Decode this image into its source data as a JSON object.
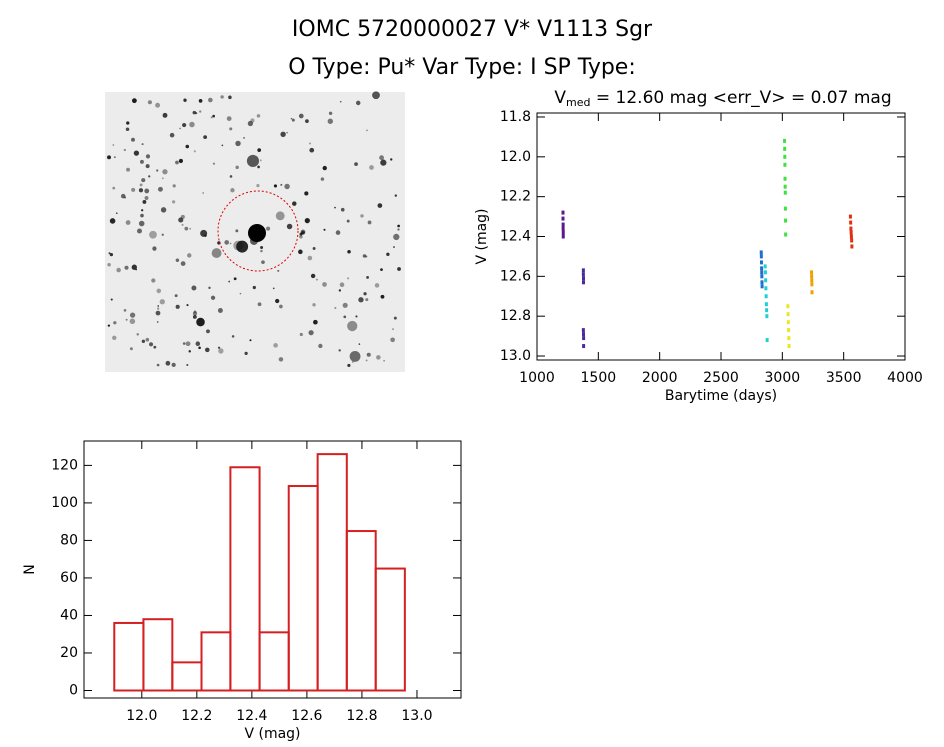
{
  "header": {
    "title": "IOMC 5720000027    V* V1113 Sgr",
    "subtitle": "O Type: Pu*   Var Type: I   SP Type:"
  },
  "chart_data": [
    {
      "type": "scatter",
      "title": {
        "symbol": "V",
        "subscript": "med",
        "text": " = 12.60 mag <err_V> = 0.07 mag"
      },
      "x_label": "Barytime (days)",
      "y_label": "V (mag)",
      "xlim": [
        1000,
        4000
      ],
      "xticks": [
        1000,
        1500,
        2000,
        2500,
        3000,
        3500,
        4000
      ],
      "ylim": [
        13.02,
        11.78
      ],
      "y_reversed": true,
      "yticks": [
        11.8,
        {
          "value": 12.0,
          "label": "12.0"
        },
        12.2,
        12.4,
        12.6,
        12.8,
        {
          "value": 13.0,
          "label": "13.0"
        }
      ],
      "series": [
        {
          "color": "#5a1a8c",
          "x": [
            1212,
            1212,
            1213,
            1213,
            1214,
            1214
          ],
          "y": [
            12.28,
            12.31,
            12.34,
            12.36,
            12.38,
            12.4
          ]
        },
        {
          "color": "#4b2a9c",
          "x": [
            1378,
            1378,
            1379,
            1379,
            1378,
            1379,
            1380,
            1380
          ],
          "y": [
            12.57,
            12.59,
            12.61,
            12.63,
            12.87,
            12.89,
            12.91,
            12.95
          ]
        },
        {
          "color": "#1f6fd0",
          "x": [
            2828,
            2829,
            2830,
            2831,
            2832,
            2833,
            2834,
            2835
          ],
          "y": [
            12.48,
            12.5,
            12.53,
            12.56,
            12.58,
            12.6,
            12.63,
            12.65
          ]
        },
        {
          "color": "#20d0d0",
          "x": [
            2860,
            2862,
            2864,
            2866,
            2868,
            2870,
            2872,
            2874,
            2876
          ],
          "y": [
            12.55,
            12.58,
            12.62,
            12.66,
            12.7,
            12.74,
            12.77,
            12.8,
            12.92
          ]
        },
        {
          "color": "#40e040",
          "x": [
            3018,
            3019,
            3020,
            3021,
            3022,
            3023,
            3024,
            3025,
            3026,
            3027
          ],
          "y": [
            11.92,
            11.96,
            12.0,
            12.04,
            12.11,
            12.15,
            12.18,
            12.26,
            12.32,
            12.39
          ]
        },
        {
          "color": "#e8e820",
          "x": [
            3045,
            3047,
            3049,
            3051,
            3053,
            3055
          ],
          "y": [
            12.75,
            12.79,
            12.83,
            12.87,
            12.91,
            12.95
          ]
        },
        {
          "color": "#f0a000",
          "x": [
            3238,
            3239,
            3240,
            3241,
            3242
          ],
          "y": [
            12.58,
            12.6,
            12.62,
            12.64,
            12.68
          ]
        },
        {
          "color": "#e03010",
          "x": [
            3555,
            3557,
            3559,
            3561,
            3563,
            3565,
            3567
          ],
          "y": [
            12.3,
            12.33,
            12.36,
            12.38,
            12.4,
            12.42,
            12.45
          ]
        }
      ]
    },
    {
      "type": "histogram",
      "x_label": "V (mag)",
      "y_label": "N",
      "color": "#d42020",
      "bins": [
        11.9,
        12.006,
        12.111,
        12.217,
        12.322,
        12.428,
        12.534,
        12.639,
        12.745,
        12.85,
        12.956
      ],
      "counts": [
        36,
        38,
        15,
        31,
        119,
        31,
        109,
        126,
        85,
        65
      ],
      "xlim": [
        11.79,
        13.16
      ],
      "xticks": [
        {
          "value": 12.0,
          "label": "12.0"
        },
        12.2,
        12.4,
        12.6,
        12.8,
        {
          "value": 13.0,
          "label": "13.0"
        }
      ],
      "ylim": [
        -4,
        133
      ],
      "yticks": [
        0,
        20,
        40,
        60,
        80,
        100,
        120
      ]
    }
  ]
}
